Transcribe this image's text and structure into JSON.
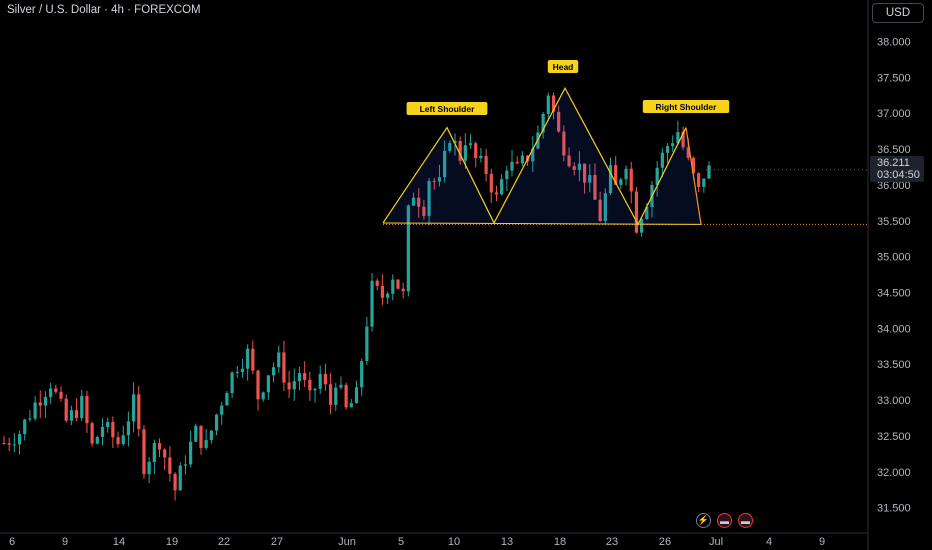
{
  "header": {
    "title": "Silver / U.S. Dollar · 4h · FOREXCOM",
    "currency_button": "USD"
  },
  "current_price": {
    "value": "36.211",
    "countdown": "03:04:50"
  },
  "colors": {
    "up": "#26a69a",
    "down": "#ef5350",
    "pattern": "#f5d21b",
    "label_bg": "#f5d21b",
    "text": "#b2b5be"
  },
  "icons": [
    "lightning-icon",
    "us-flag-icon",
    "us-flag-icon"
  ],
  "chart_data": {
    "type": "candlestick",
    "ylim": [
      31.3,
      38.3
    ],
    "yticks": [
      "38.000",
      "37.500",
      "37.000",
      "36.500",
      "36.000",
      "35.500",
      "35.000",
      "34.500",
      "34.000",
      "33.500",
      "33.000",
      "32.500",
      "32.000",
      "31.500"
    ],
    "xticks": [
      "6",
      "9",
      "14",
      "19",
      "22",
      "27",
      "Jun",
      "5",
      "10",
      "13",
      "18",
      "23",
      "26",
      "Jul",
      "4",
      "9"
    ],
    "grid": false,
    "price_path": [
      [
        0,
        32.4
      ],
      [
        3,
        32.55
      ],
      [
        6,
        32.95
      ],
      [
        9,
        33.25
      ],
      [
        12,
        32.7
      ],
      [
        15,
        32.95
      ],
      [
        17,
        32.35
      ],
      [
        19,
        32.65
      ],
      [
        22,
        32.4
      ],
      [
        25,
        32.95
      ],
      [
        27,
        32.1
      ],
      [
        30,
        32.45
      ],
      [
        33,
        31.75
      ],
      [
        35,
        32.2
      ],
      [
        37,
        32.55
      ],
      [
        39,
        32.35
      ],
      [
        41,
        32.8
      ],
      [
        43,
        33.2
      ],
      [
        45,
        33.5
      ],
      [
        47,
        33.65
      ],
      [
        49,
        33.05
      ],
      [
        51,
        33.4
      ],
      [
        53,
        33.55
      ],
      [
        55,
        33.15
      ],
      [
        57,
        33.4
      ],
      [
        59,
        33.0
      ],
      [
        61,
        33.35
      ],
      [
        63,
        32.95
      ],
      [
        64,
        33.3
      ],
      [
        66,
        32.85
      ],
      [
        68,
        33.05
      ],
      [
        70,
        34.1
      ],
      [
        71,
        34.55
      ],
      [
        73,
        34.45
      ],
      [
        75,
        34.75
      ],
      [
        77,
        34.45
      ],
      [
        78,
        35.6
      ],
      [
        79,
        35.9
      ],
      [
        81,
        35.7
      ],
      [
        82,
        36.1
      ],
      [
        84,
        36.0
      ],
      [
        86,
        36.7
      ],
      [
        88,
        36.4
      ],
      [
        89,
        36.65
      ],
      [
        91,
        36.35
      ],
      [
        93,
        36.2
      ],
      [
        95,
        35.8
      ],
      [
        97,
        36.3
      ],
      [
        99,
        36.2
      ],
      [
        101,
        36.4
      ],
      [
        103,
        36.7
      ],
      [
        105,
        37.3
      ],
      [
        107,
        36.7
      ],
      [
        109,
        36.4
      ],
      [
        111,
        36.25
      ],
      [
        113,
        36.0
      ],
      [
        115,
        35.55
      ],
      [
        117,
        36.15
      ],
      [
        118,
        35.95
      ],
      [
        120,
        36.35
      ],
      [
        122,
        35.45
      ],
      [
        124,
        35.8
      ],
      [
        126,
        36.25
      ],
      [
        128,
        36.55
      ],
      [
        130,
        36.75
      ],
      [
        132,
        36.3
      ],
      [
        134,
        35.9
      ],
      [
        135,
        36.15
      ],
      [
        136,
        36.21
      ]
    ],
    "pattern": {
      "label_left_shoulder": "Left Shoulder",
      "label_head": "Head",
      "label_right_shoulder": "Right Shoulder",
      "points": [
        [
          35.47,
          "ls_start"
        ],
        [
          36.8,
          "ls_peak"
        ],
        [
          35.47,
          "neck1"
        ],
        [
          37.35,
          "head"
        ],
        [
          35.45,
          "neck2"
        ],
        [
          36.8,
          "rs_peak"
        ],
        [
          35.45,
          "rs_end"
        ]
      ],
      "neckline": 35.45
    }
  }
}
